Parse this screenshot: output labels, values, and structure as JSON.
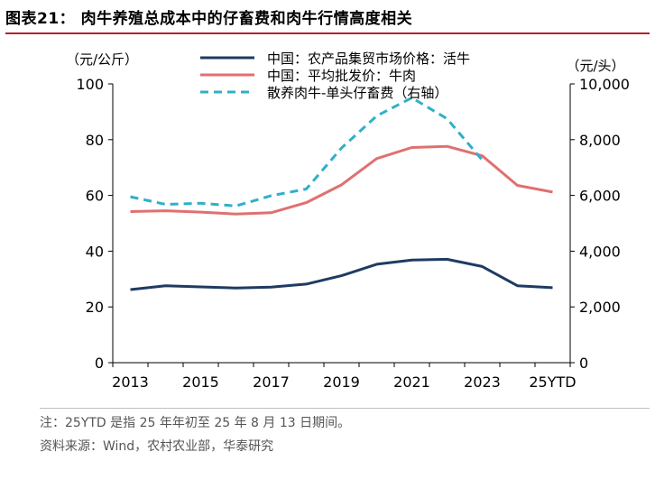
{
  "title": "图表21：  肉牛养殖总成本中的仔畜费和肉牛行情高度相关",
  "note": "注：25YTD 是指 25 年年初至 25 年 8 月 13 日期间。",
  "source": "资料来源：Wind，农村农业部，华泰研究",
  "colors": {
    "title_rule": "#b6202b",
    "series1": "#1f3b63",
    "series2": "#e07070",
    "series3": "#2fb0c8"
  },
  "chart_data": {
    "type": "line",
    "categories": [
      "2013",
      "2014",
      "2015",
      "2016",
      "2017",
      "2018",
      "2019",
      "2020",
      "2021",
      "2022",
      "2023",
      "2024",
      "25YTD"
    ],
    "x_tick_labels": [
      "2013",
      "2015",
      "2017",
      "2019",
      "2021",
      "2023",
      "25YTD"
    ],
    "left_axis": {
      "unit_label": "（元/公斤）",
      "ylim": [
        0,
        100
      ],
      "ticks": [
        "0",
        "20",
        "40",
        "60",
        "80",
        "100"
      ]
    },
    "right_axis": {
      "unit_label": "（元/头）",
      "ylim": [
        0,
        10000
      ],
      "ticks": [
        "0",
        "2,000",
        "4,000",
        "6,000",
        "8,000",
        "10,000"
      ]
    },
    "series": [
      {
        "name": "中国：农产品集贸市场价格：活牛",
        "axis": "left",
        "style": "solid",
        "values": [
          26.2,
          27.6,
          27.2,
          26.8,
          27.1,
          28.2,
          31.2,
          35.3,
          36.8,
          37.1,
          34.5,
          27.6,
          26.9
        ]
      },
      {
        "name": "中国：平均批发价：牛肉",
        "axis": "left",
        "style": "solid",
        "values": [
          54.2,
          54.5,
          54.0,
          53.3,
          53.8,
          57.4,
          63.8,
          73.2,
          77.2,
          77.6,
          74.2,
          63.6,
          61.2
        ]
      },
      {
        "name": "散养肉牛-单头仔畜费（右轴）",
        "axis": "right",
        "style": "dashed",
        "values": [
          5950,
          5680,
          5720,
          5620,
          5990,
          6230,
          7700,
          8850,
          9500,
          8750,
          7270,
          null,
          null
        ]
      }
    ],
    "grid": false,
    "legend": "top-center"
  }
}
